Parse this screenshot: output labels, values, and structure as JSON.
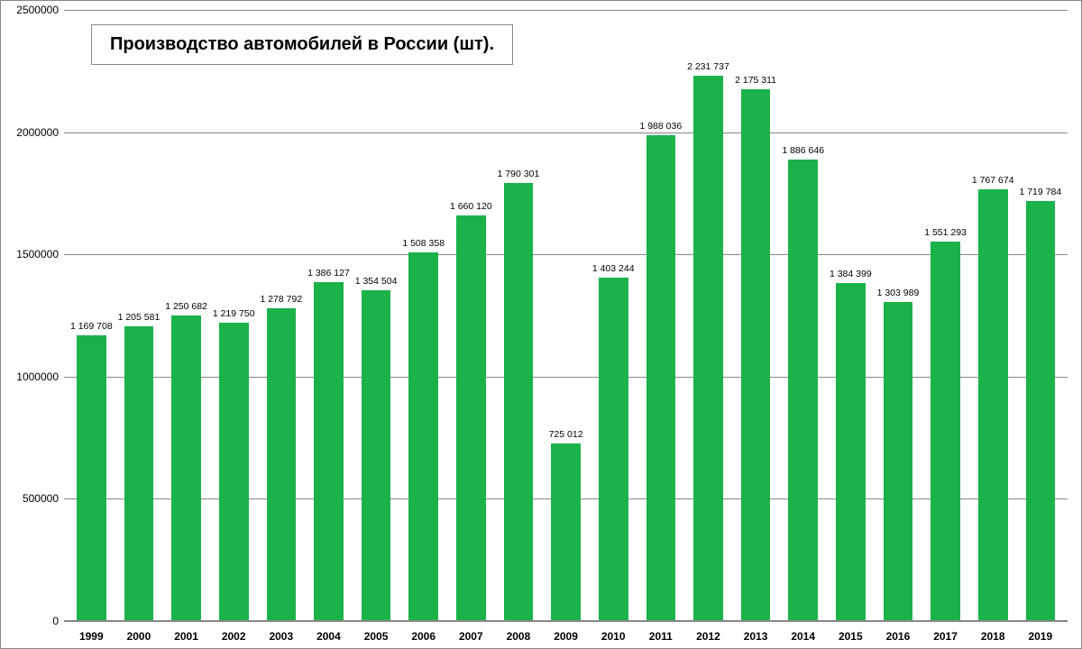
{
  "chart": {
    "type": "bar",
    "title": "Производство автомобилей в России (шт).",
    "title_fontsize": 20,
    "title_fontweight": "bold",
    "background_color": "#ffffff",
    "plot_background": "#ffffff",
    "border_color": "#888888",
    "grid_color": "#888888",
    "bar_color": "#1bb24a",
    "text_color": "#000000",
    "label_fontsize": 10.5,
    "axis_fontsize": 12,
    "x_label_fontweight": "bold",
    "bar_width_ratio": 0.62,
    "ylim": [
      0,
      2500000
    ],
    "ytick_step": 500000,
    "yticks": [
      {
        "value": 0,
        "label": "0"
      },
      {
        "value": 500000,
        "label": "500000"
      },
      {
        "value": 1000000,
        "label": "1000000"
      },
      {
        "value": 1500000,
        "label": "1500000"
      },
      {
        "value": 2000000,
        "label": "2000000"
      },
      {
        "value": 2500000,
        "label": "2500000"
      }
    ],
    "categories": [
      "1999",
      "2000",
      "2001",
      "2002",
      "2003",
      "2004",
      "2005",
      "2006",
      "2007",
      "2008",
      "2009",
      "2010",
      "2011",
      "2012",
      "2013",
      "2014",
      "2015",
      "2016",
      "2017",
      "2018",
      "2019"
    ],
    "values": [
      1169708,
      1205581,
      1250682,
      1219750,
      1278792,
      1386127,
      1354504,
      1508358,
      1660120,
      1790301,
      725012,
      1403244,
      1988036,
      2231737,
      2175311,
      1886646,
      1384399,
      1303989,
      1551293,
      1767674,
      1719784
    ],
    "value_labels": [
      "1 169 708",
      "1 205 581",
      "1 250 682",
      "1 219 750",
      "1 278 792",
      "1 386 127",
      "1 354 504",
      "1 508 358",
      "1 660 120",
      "1 790 301",
      "725 012",
      "1 403 244",
      "1 988 036",
      "2 231 737",
      "2 175 311",
      "1 886 646",
      "1 384 399",
      "1 303 989",
      "1 551 293",
      "1 767 674",
      "1 719 784"
    ]
  }
}
